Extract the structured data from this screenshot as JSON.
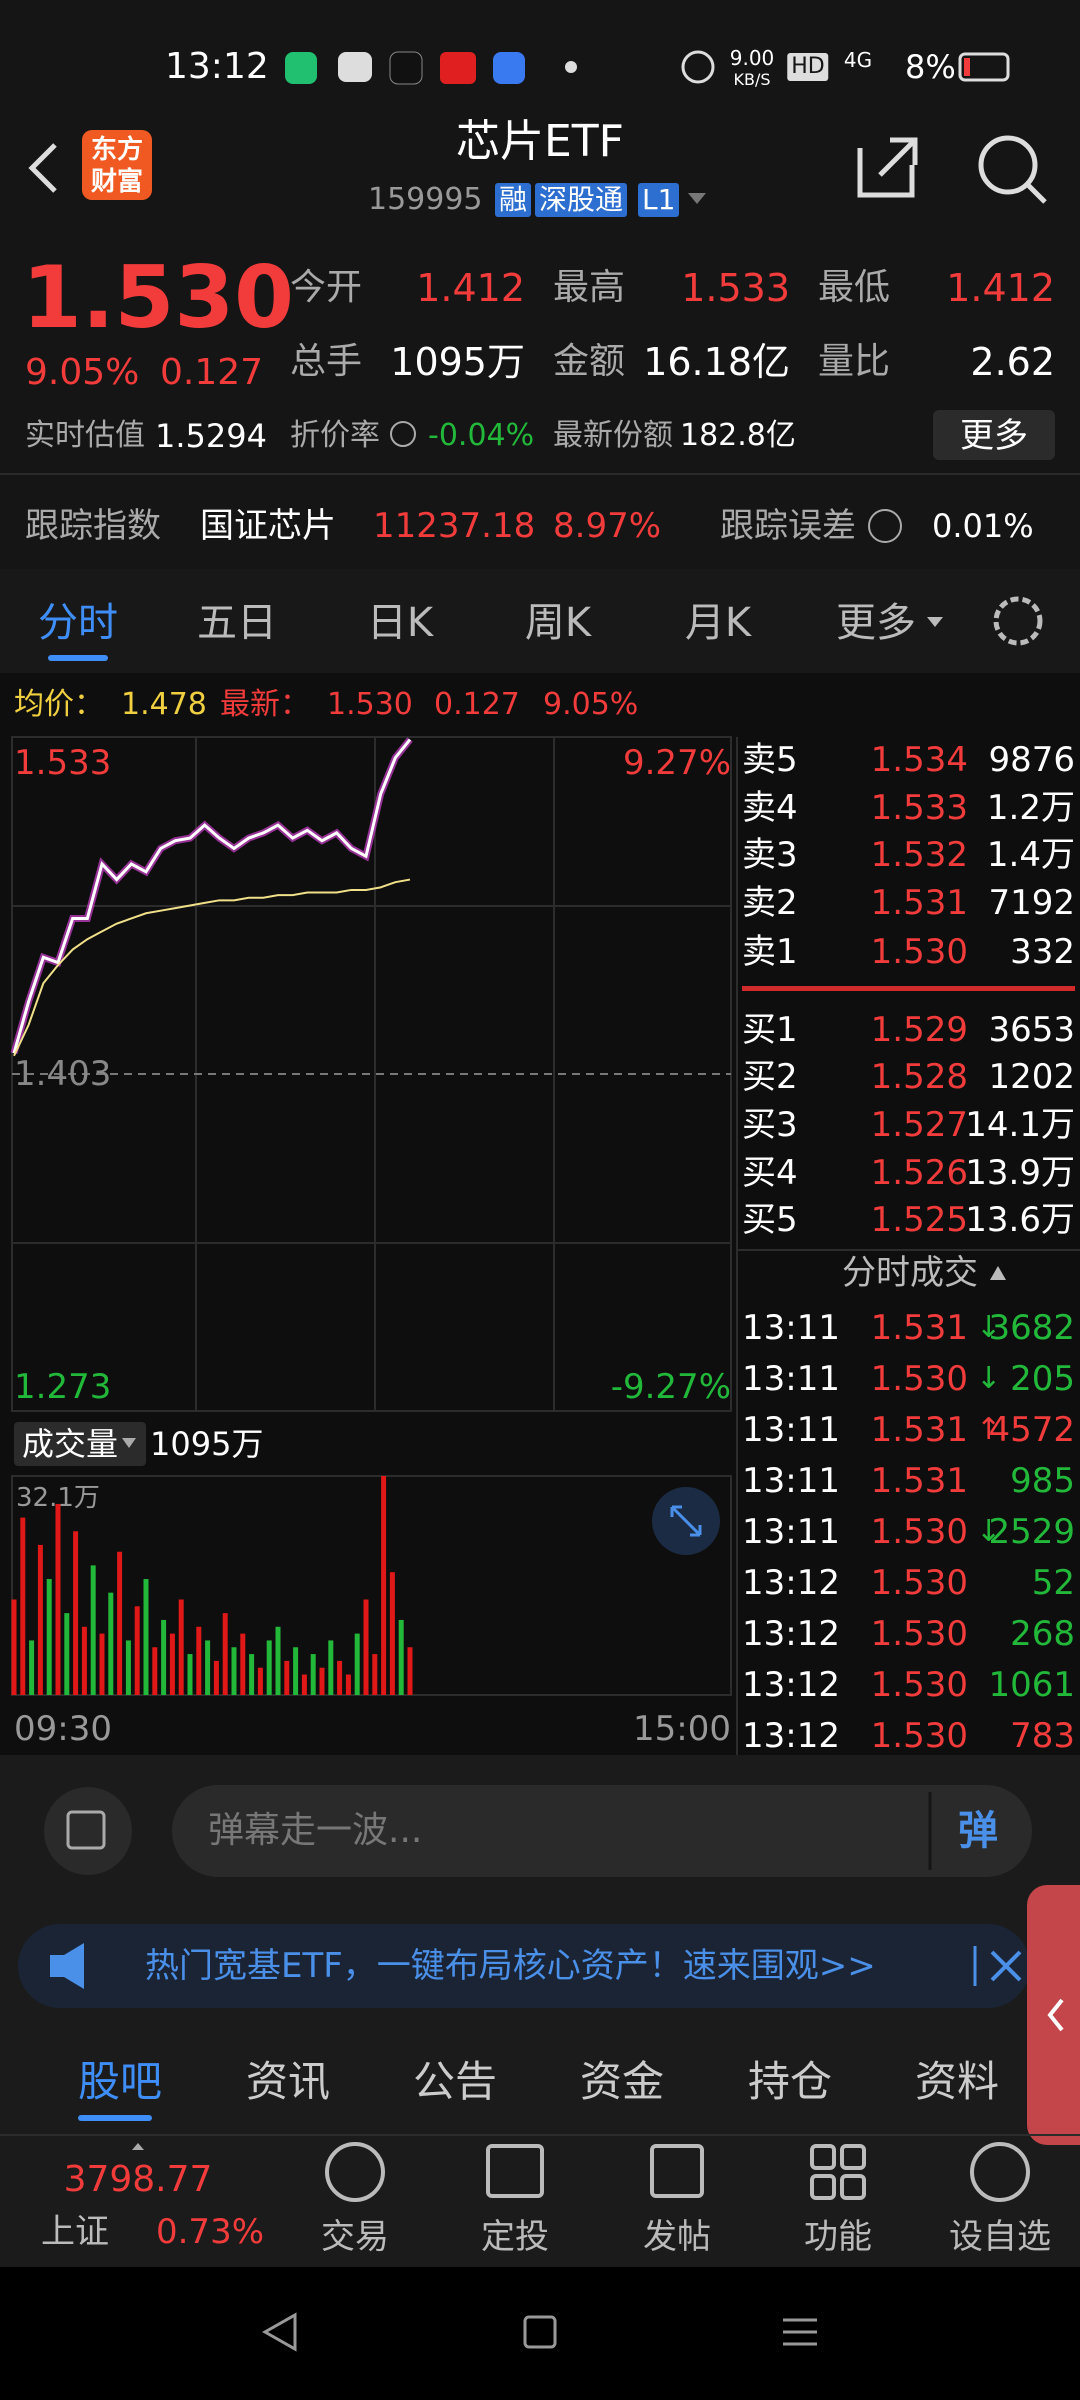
{
  "status_bar": {
    "time": "13:12",
    "speed": "9.00",
    "speed_unit": "KB/S",
    "hd": "HD",
    "network": "4G",
    "battery": "8%"
  },
  "header": {
    "logo_top": "东方",
    "logo_bottom": "财富",
    "title": "芯片ETF",
    "code": "159995",
    "tags": [
      "融",
      "深股通",
      "L1"
    ]
  },
  "quote": {
    "price": "1.530",
    "change_pct": "9.05%",
    "change": "0.127",
    "stats": [
      {
        "label": "今开",
        "value": "1.412",
        "color": "#f23b3b"
      },
      {
        "label": "最高",
        "value": "1.533",
        "color": "#f23b3b"
      },
      {
        "label": "最低",
        "value": "1.412",
        "color": "#f23b3b"
      },
      {
        "label": "总手",
        "value": "1095万",
        "color": "#ffffff"
      },
      {
        "label": "金额",
        "value": "16.18亿",
        "color": "#ffffff"
      },
      {
        "label": "量比",
        "value": "2.62",
        "color": "#ffffff"
      }
    ],
    "estimate_label": "实时估值",
    "estimate": "1.5294",
    "discount_label": "折价率",
    "discount": "-0.04%",
    "shares_label": "最新份额",
    "shares": "182.8亿",
    "more": "更多"
  },
  "tracking": {
    "label": "跟踪指数",
    "index": "国证芯片",
    "value": "11237.18",
    "change_pct": "8.97%",
    "error_label": "跟踪误差",
    "error": "0.01%"
  },
  "tabs": {
    "items": [
      "分时",
      "五日",
      "日K",
      "周K",
      "月K",
      "更多"
    ],
    "active": 0
  },
  "intraday": {
    "avg_label": "均价：",
    "avg": "1.478",
    "latest_label": "最新：",
    "latest": "1.530",
    "change": "0.127",
    "change_pct": "9.05%"
  },
  "chart_data": [
    {
      "type": "line",
      "ylim": [
        1.273,
        1.533
      ],
      "yticks": [
        1.533,
        1.403,
        1.273
      ],
      "y2lim": [
        -9.27,
        9.27
      ],
      "y2ticks": [
        {
          "value": 9.27,
          "label": "9.27%"
        },
        {
          "value": -9.27,
          "label": "-9.27%"
        }
      ],
      "series": [
        {
          "color": "#ffffff",
          "values": [
            1.411,
            1.431,
            1.448,
            1.446,
            1.463,
            1.463,
            1.484,
            1.478,
            1.484,
            1.481,
            1.49,
            1.493,
            1.494,
            1.499,
            1.494,
            1.49,
            1.494,
            1.496,
            1.499,
            1.494,
            1.497,
            1.493,
            1.496,
            1.49,
            1.487,
            1.511,
            1.525,
            1.532
          ]
        },
        {
          "color": "#f0e08a",
          "values": [
            1.41,
            1.422,
            1.438,
            1.445,
            1.451,
            1.455,
            1.458,
            1.461,
            1.463,
            1.465,
            1.466,
            1.467,
            1.468,
            1.469,
            1.47,
            1.47,
            1.471,
            1.471,
            1.472,
            1.472,
            1.473,
            1.473,
            1.473,
            1.474,
            1.474,
            1.475,
            1.477,
            1.478
          ]
        }
      ]
    },
    {
      "type": "bar",
      "label": "成交量",
      "total": "1095万",
      "ylim": [
        0,
        32.1
      ],
      "yticks": [
        {
          "value": 32.1,
          "label": "32.1万"
        }
      ],
      "xticks": [
        "09:30",
        "15:00"
      ],
      "values": [
        14,
        26,
        8,
        22,
        17,
        28,
        12,
        24,
        10,
        19,
        9,
        15,
        21,
        8,
        13,
        17,
        7,
        11,
        9,
        14,
        6,
        10,
        8,
        5,
        12,
        7,
        9,
        6,
        4,
        8,
        10,
        5,
        7,
        3,
        6,
        4,
        8,
        5,
        3,
        9,
        14,
        6,
        32.1,
        18,
        11,
        7
      ],
      "colors": [
        "#e01818",
        "#e01818",
        "#22b83a",
        "#e01818",
        "#22b83a",
        "#e01818",
        "#22b83a",
        "#e01818",
        "#e01818",
        "#22b83a",
        "#e01818",
        "#22b83a",
        "#e01818",
        "#22b83a",
        "#e01818",
        "#22b83a",
        "#e01818",
        "#22b83a",
        "#e01818",
        "#e01818",
        "#22b83a",
        "#e01818",
        "#22b83a",
        "#e01818",
        "#e01818",
        "#22b83a",
        "#e01818",
        "#22b83a",
        "#e01818",
        "#22b83a",
        "#22b83a",
        "#e01818",
        "#22b83a",
        "#e01818",
        "#22b83a",
        "#e01818",
        "#22b83a",
        "#e01818",
        "#e01818",
        "#22b83a",
        "#e01818",
        "#e01818",
        "#e01818",
        "#e01818",
        "#22b83a",
        "#e01818"
      ]
    }
  ],
  "order_book": {
    "asks": [
      {
        "label": "卖5",
        "price": "1.534",
        "volume": "9876"
      },
      {
        "label": "卖4",
        "price": "1.533",
        "volume": "1.2万"
      },
      {
        "label": "卖3",
        "price": "1.532",
        "volume": "1.4万"
      },
      {
        "label": "卖2",
        "price": "1.531",
        "volume": "7192"
      },
      {
        "label": "卖1",
        "price": "1.530",
        "volume": "332"
      }
    ],
    "bids": [
      {
        "label": "买1",
        "price": "1.529",
        "volume": "3653"
      },
      {
        "label": "买2",
        "price": "1.528",
        "volume": "1202"
      },
      {
        "label": "买3",
        "price": "1.527",
        "volume": "14.1万"
      },
      {
        "label": "买4",
        "price": "1.526",
        "volume": "13.9万"
      },
      {
        "label": "买5",
        "price": "1.525",
        "volume": "13.6万"
      }
    ]
  },
  "trades": {
    "title": "分时成交",
    "rows": [
      {
        "time": "13:11",
        "price": "1.531",
        "arrow": "↓",
        "volume": "3682",
        "color": "#22b83a"
      },
      {
        "time": "13:11",
        "price": "1.530",
        "arrow": "↓",
        "volume": "205",
        "color": "#22b83a"
      },
      {
        "time": "13:11",
        "price": "1.531",
        "arrow": "↑",
        "volume": "4572",
        "color": "#f23b3b"
      },
      {
        "time": "13:11",
        "price": "1.531",
        "volume": "985",
        "color": "#22b83a"
      },
      {
        "time": "13:11",
        "price": "1.530",
        "arrow": "↓",
        "volume": "2529",
        "color": "#22b83a"
      },
      {
        "time": "13:12",
        "price": "1.530",
        "volume": "52",
        "color": "#22b83a"
      },
      {
        "time": "13:12",
        "price": "1.530",
        "volume": "268",
        "color": "#22b83a"
      },
      {
        "time": "13:12",
        "price": "1.530",
        "volume": "1061",
        "color": "#22b83a"
      },
      {
        "time": "13:12",
        "price": "1.530",
        "volume": "783",
        "color": "#f23b3b"
      }
    ]
  },
  "comment": {
    "placeholder": "弹幕走一波...",
    "button": "弹"
  },
  "banner": "热门宽基ETF，一键布局核心资产！速来围观>>",
  "bottom_tabs": {
    "items": [
      "股吧",
      "资讯",
      "公告",
      "资金",
      "持仓",
      "资料"
    ],
    "active": 0
  },
  "index": {
    "value": "3798.77",
    "name": "上证",
    "change": "0.73%"
  },
  "toolbar": [
    "交易",
    "定投",
    "发帖",
    "功能",
    "设自选"
  ]
}
